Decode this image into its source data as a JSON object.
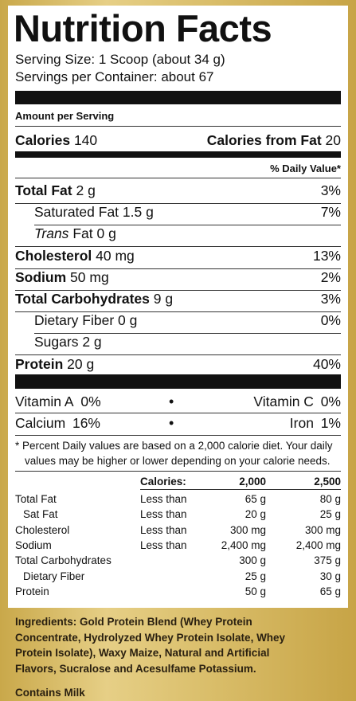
{
  "title": "Nutrition Facts",
  "serving_size": "Serving Size: 1 Scoop (about 34 g)",
  "servings_per_container": "Servings per Container: about 67",
  "amount_per_serving": "Amount per Serving",
  "calories": {
    "label": "Calories",
    "value": "140"
  },
  "calories_from_fat": {
    "label": "Calories from Fat",
    "value": "20"
  },
  "daily_value_header": "% Daily Value*",
  "nutrients": [
    {
      "name": "Total Fat",
      "amount": "2 g",
      "dv": "3%"
    },
    {
      "name": "Saturated Fat",
      "amount": "1.5 g",
      "dv": "7%"
    },
    {
      "name_italic": "Trans",
      "name": "Fat",
      "amount": "0 g"
    },
    {
      "name": "Cholesterol",
      "amount": "40 mg",
      "dv": "13%"
    },
    {
      "name": "Sodium",
      "amount": "50 mg",
      "dv": "2%"
    },
    {
      "name": "Total Carbohydrates",
      "amount": "9 g",
      "dv": "3%"
    },
    {
      "name": "Dietary Fiber",
      "amount": "0 g",
      "dv": "0%"
    },
    {
      "name": "Sugars",
      "amount": "2 g"
    },
    {
      "name": "Protein",
      "amount": "20 g",
      "dv": "40%"
    }
  ],
  "vitamins": [
    {
      "name": "Vitamin A",
      "dv": "0%"
    },
    {
      "name": "Vitamin C",
      "dv": "0%"
    },
    {
      "name": "Calcium",
      "dv": "16%"
    },
    {
      "name": "Iron",
      "dv": "1%"
    }
  ],
  "footnote": [
    "* Percent Daily values are based on a 2,000 calorie diet. Your daily",
    "values may be higher or lower depending on your calorie needs."
  ],
  "reference_table": {
    "header": [
      "Calories:",
      "2,000",
      "2,500"
    ],
    "rows": [
      {
        "label": "Total Fat",
        "comparison": "Less than",
        "values": [
          "65 g",
          "80 g"
        ]
      },
      {
        "label": "Sat Fat",
        "comparison": "Less than",
        "values": [
          "20 g",
          "25 g"
        ]
      },
      {
        "label": "Cholesterol",
        "comparison": "Less than",
        "values": [
          "300 mg",
          "300 mg"
        ]
      },
      {
        "label": "Sodium",
        "comparison": "Less than",
        "values": [
          "2,400 mg",
          "2,400 mg"
        ]
      },
      {
        "label": "Total Carbohydrates",
        "values": [
          "300 g",
          "375 g"
        ]
      },
      {
        "label": "Dietary Fiber",
        "values": [
          "25 g",
          "30 g"
        ]
      },
      {
        "label": "Protein",
        "values": [
          "50 g",
          "65 g"
        ]
      }
    ]
  },
  "ingredients": [
    "Ingredients: Gold Protein Blend (Whey Protein",
    "Concentrate, Hydrolyzed Whey Protein Isolate, Whey",
    "Protein Isolate),  Waxy Maize, Natural and Artificial",
    "Flavors, Sucralose and Acesulfame Potassium."
  ],
  "allergen": "Contains Milk"
}
